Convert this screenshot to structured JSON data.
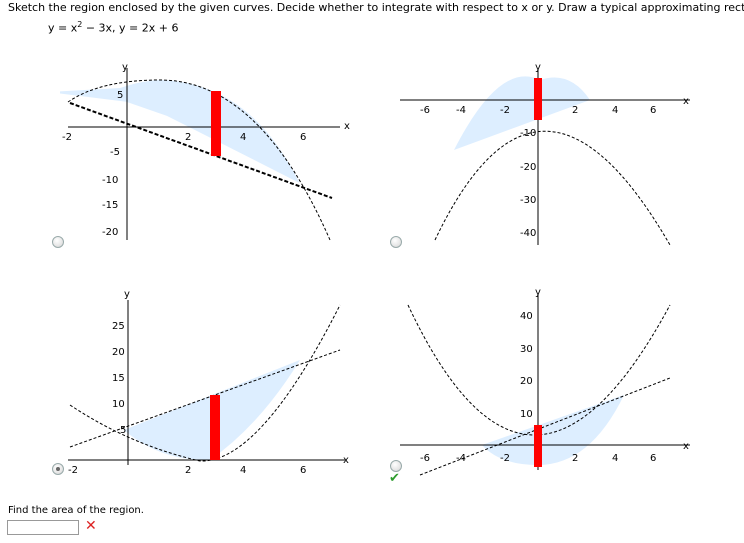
{
  "instruction": "Sketch the region enclosed by the given curves. Decide whether to integrate with respect to x or y. Draw a typical approximating rectangle.",
  "equation": {
    "part1": "y = x",
    "exp": "2",
    "part2": " − 3x,  y = 2x + 6"
  },
  "graphs": [
    {
      "xticks": [
        "-2",
        "2",
        "4",
        "6"
      ],
      "yticks": [
        "5",
        "-5",
        "-10",
        "-15",
        "-20"
      ],
      "xlabel": "x",
      "ylabel": "y"
    },
    {
      "xticks": [
        "-6",
        "-4",
        "-2",
        "2",
        "4",
        "6"
      ],
      "yticks": [
        "-10",
        "-20",
        "-30",
        "-40"
      ],
      "xlabel": "x",
      "ylabel": "y"
    },
    {
      "xticks": [
        "-2",
        "2",
        "4",
        "6"
      ],
      "yticks": [
        "25",
        "20",
        "15",
        "10",
        "5"
      ],
      "xlabel": "x",
      "ylabel": "y"
    },
    {
      "xticks": [
        "-6",
        "-4",
        "-2",
        "2",
        "4",
        "6"
      ],
      "yticks": [
        "40",
        "30",
        "20",
        "10"
      ],
      "xlabel": "x",
      "ylabel": "y"
    }
  ],
  "options": {
    "selected_index": 2,
    "correct_index": 3
  },
  "area_prompt": "Find the area of the region.",
  "area_value": "",
  "colors": {
    "fill": "#ddeeff",
    "rect": "#ff0000",
    "check": "#2e9d2e",
    "cross": "#dd2222"
  },
  "icons": {
    "check": "checkmark-icon",
    "cross": "x-mark-icon"
  }
}
